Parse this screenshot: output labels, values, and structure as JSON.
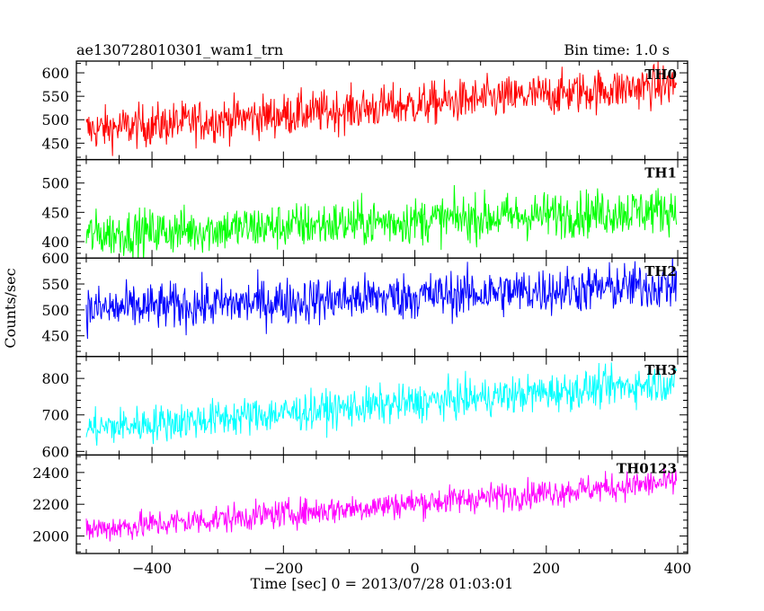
{
  "header": {
    "left_title": "ae130728010301_wam1_trn",
    "right_title": "Bin time: 1.0 s"
  },
  "axes": {
    "ylabel": "Counts/sec",
    "xlabel": "Time [sec] 0 = 2013/07/28 01:03:01",
    "xlim": [
      -515,
      415
    ],
    "xticks": [
      -400,
      -200,
      0,
      200,
      400
    ],
    "xtick_labels": [
      "−400",
      "−200",
      "0",
      "200",
      "400"
    ]
  },
  "chart_data": {
    "type": "line",
    "x_start": -500,
    "x_end": 398,
    "bin": 1.0,
    "panels": [
      {
        "name": "TH0",
        "color": "#ff0000",
        "ylim": [
          415,
          625
        ],
        "yticks": [
          450,
          500,
          550,
          600
        ],
        "trend_start": 478,
        "trend_end": 575,
        "noise": 23
      },
      {
        "name": "TH1",
        "color": "#00ff00",
        "ylim": [
          372,
          540
        ],
        "yticks": [
          400,
          450,
          500
        ],
        "trend_start": 412,
        "trend_end": 455,
        "noise": 20
      },
      {
        "name": "TH2",
        "color": "#0000ff",
        "ylim": [
          410,
          600
        ],
        "yticks": [
          450,
          500,
          550,
          600
        ],
        "trend_start": 500,
        "trend_end": 548,
        "noise": 23
      },
      {
        "name": "TH3",
        "color": "#00ffff",
        "ylim": [
          590,
          860
        ],
        "yticks": [
          600,
          700,
          800
        ],
        "trend_start": 662,
        "trend_end": 790,
        "noise": 26
      },
      {
        "name": "TH0123",
        "color": "#ff00ff",
        "ylim": [
          1890,
          2510
        ],
        "yticks": [
          2000,
          2200,
          2400
        ],
        "trend_start": 2040,
        "trend_end": 2340,
        "noise": 45
      }
    ]
  }
}
